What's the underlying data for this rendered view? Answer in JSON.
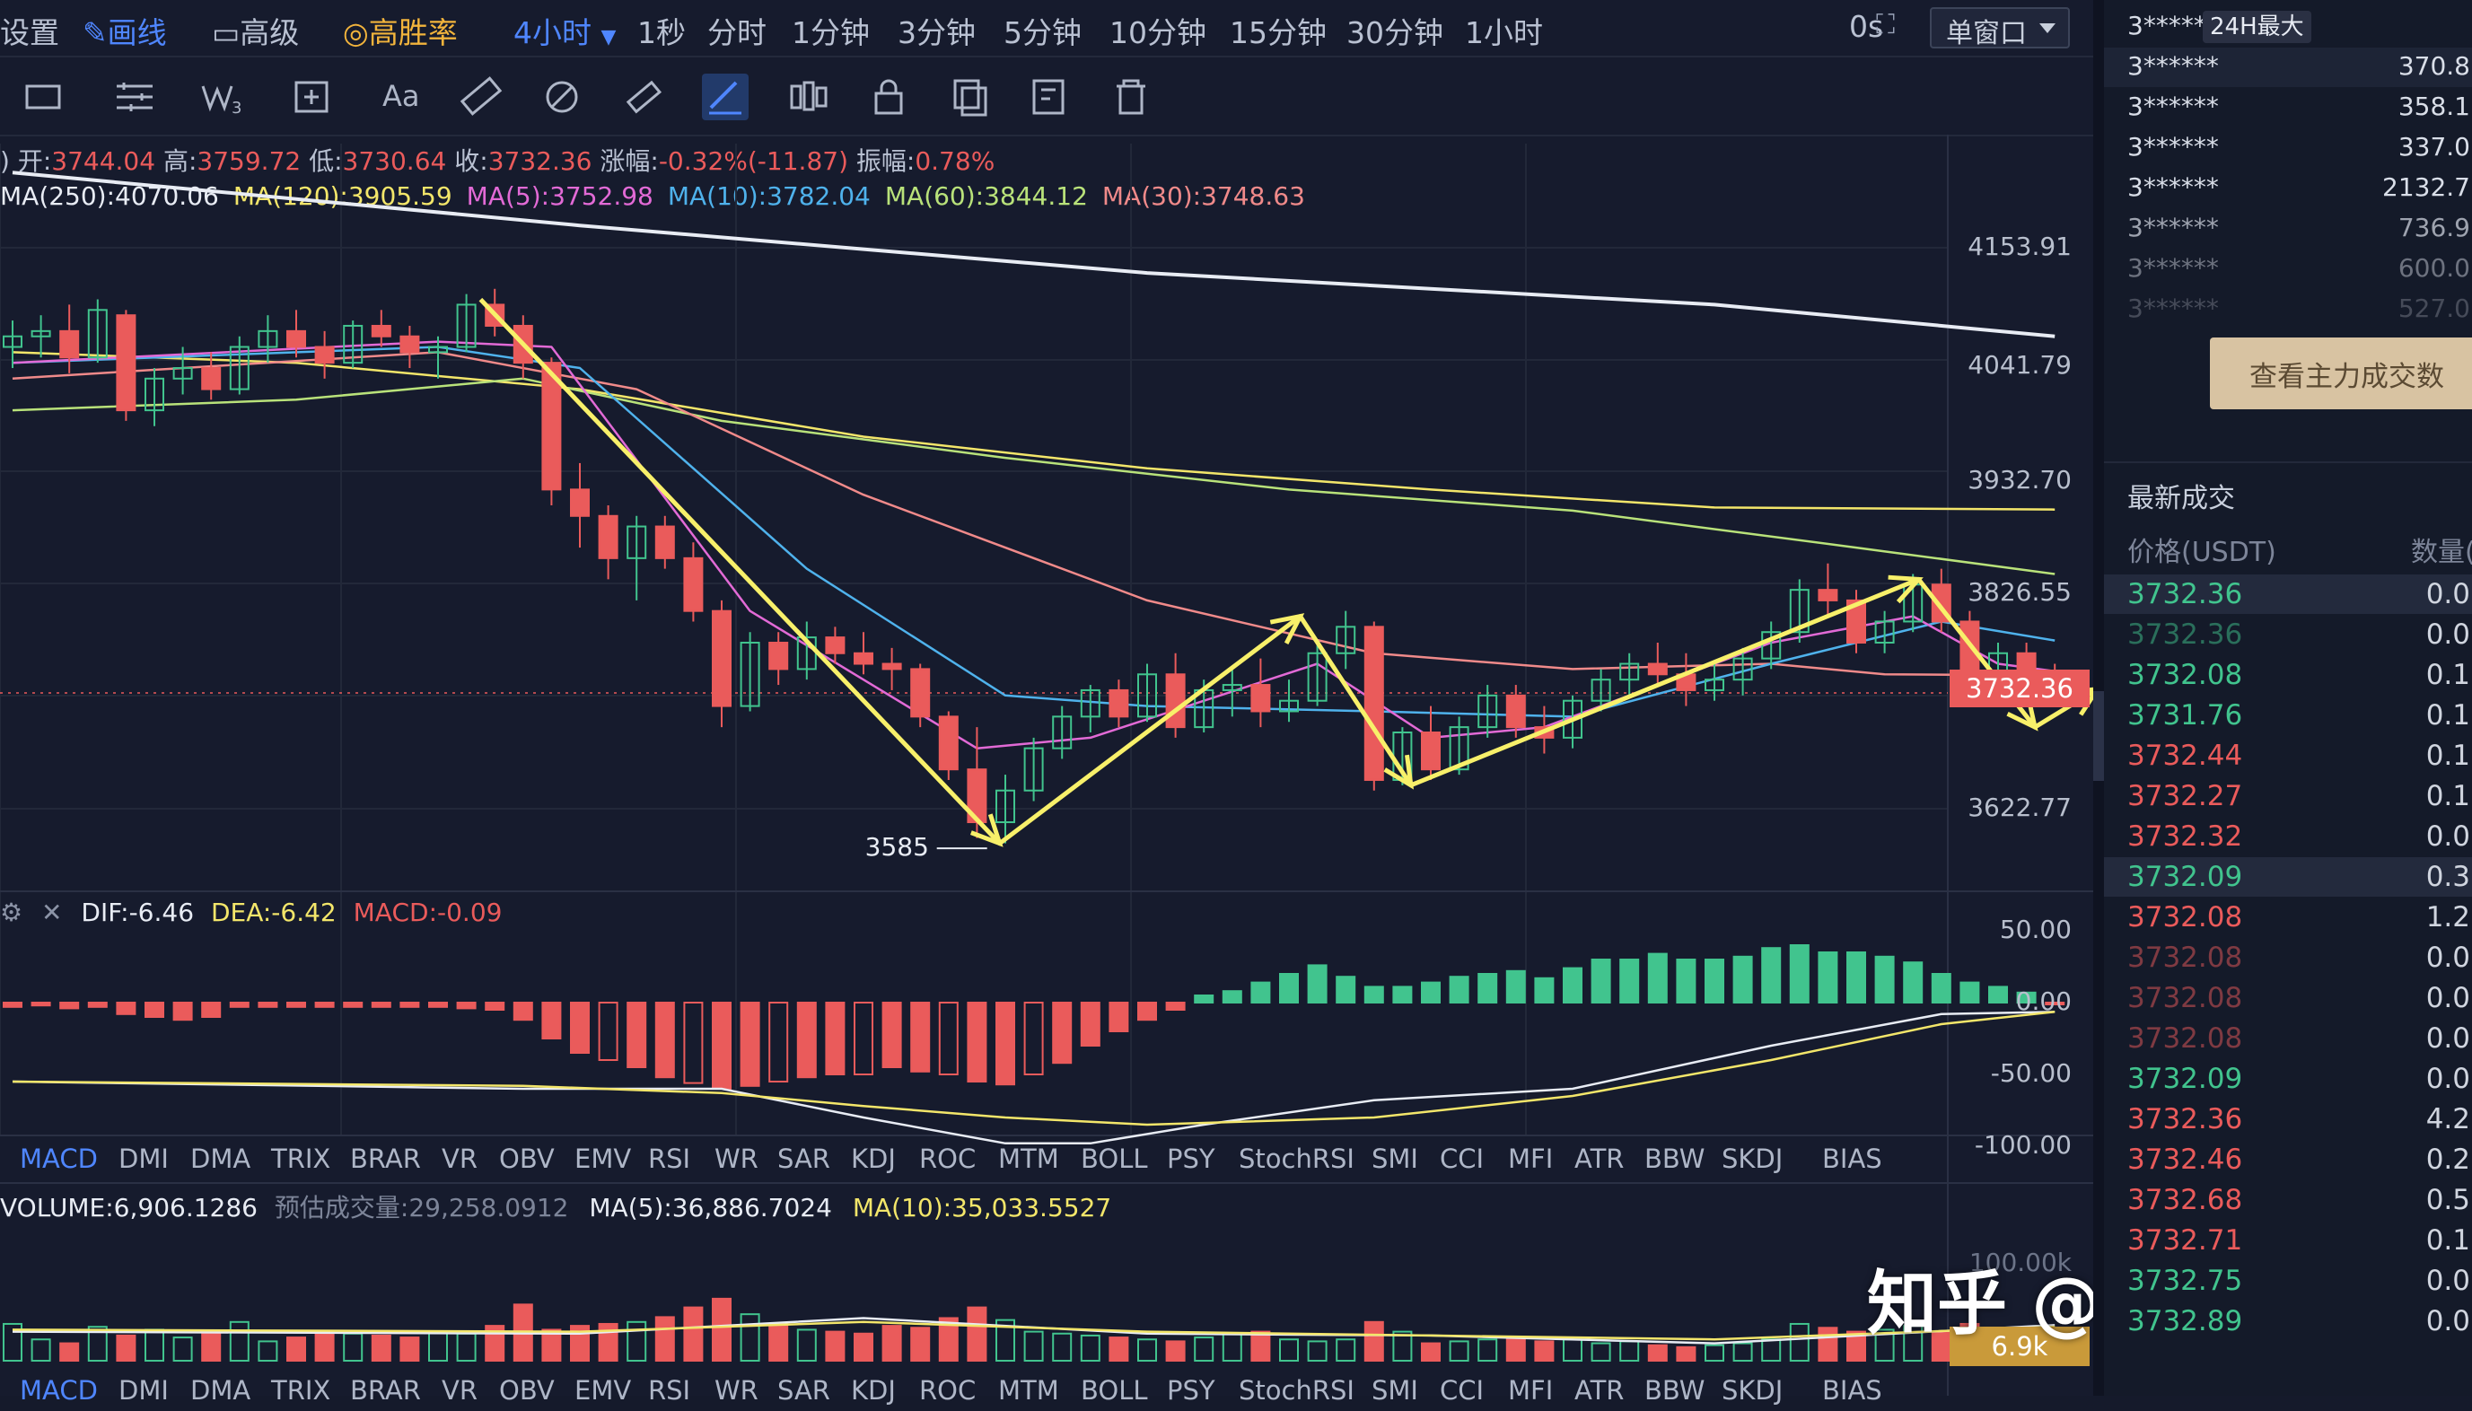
{
  "toolbar": {
    "settings": "设置",
    "draw": "画线",
    "advanced": "高级",
    "win_rate": "高胜率",
    "interval_active": "4小时",
    "intervals": [
      "1秒",
      "分时",
      "1分钟",
      "3分钟",
      "5分钟",
      "10分钟",
      "15分钟",
      "30分钟",
      "1小时"
    ],
    "latency": "0s",
    "window_mode": "单窗口"
  },
  "ohlc": {
    "open_label": "开:",
    "open": "3744.04",
    "high_label": "高:",
    "high": "3759.72",
    "low_label": "低:",
    "low": "3730.64",
    "close_label": "收:",
    "close": "3732.36",
    "change_label": "涨幅:",
    "change": "-0.32%(-11.87)",
    "amplitude_label": "振幅:",
    "amplitude": "0.78%"
  },
  "ma_legend": [
    {
      "text": "MA(250):4070.06",
      "color": "#e8ecf4"
    },
    {
      "text": "MA(120):3905.59",
      "color": "#f3e66a"
    },
    {
      "text": "MA(5):3752.98",
      "color": "#e26ad6"
    },
    {
      "text": "MA(10):3782.04",
      "color": "#4fb2ec"
    },
    {
      "text": "MA(60):3844.12",
      "color": "#b9e27a"
    },
    {
      "text": "MA(30):3748.63",
      "color": "#f08a8a"
    }
  ],
  "price_axis": [
    "4153.91",
    "4041.79",
    "3932.70",
    "3826.55",
    "3622.77"
  ],
  "current_price": "3732.36",
  "low_annotation": "3585",
  "macd": {
    "dif": "DIF:-6.46",
    "dea": "DEA:-6.42",
    "macd": "MACD:-0.09",
    "axis": [
      "50.00",
      "0.00",
      "-50.00",
      "-100.00"
    ]
  },
  "indicator_tabs": [
    "MACD",
    "DMI",
    "DMA",
    "TRIX",
    "BRAR",
    "VR",
    "OBV",
    "EMV",
    "RSI",
    "WR",
    "SAR",
    "KDJ",
    "ROC",
    "MTM",
    "BOLL",
    "PSY",
    "StochRSI",
    "SMI",
    "CCI",
    "MFI",
    "ATR",
    "BBW",
    "SKDJ",
    "BIAS"
  ],
  "indicator_tab_active": "MACD",
  "volume": {
    "volume": "VOLUME:6,906.1286",
    "estimated_label": "预估成交量:",
    "estimated": "29,258.0912",
    "ma5": "MA(5):36,886.7024",
    "ma10": "MA(10):35,033.5527",
    "axis_top": "100.00k",
    "current": "6.9k"
  },
  "watermark": "知乎 @财经船长",
  "colors": {
    "up": "#41c48e",
    "down": "#ea5b5b",
    "accent": "#4f86ff",
    "annotation": "#f8f06a"
  },
  "right_panel": {
    "top_badge": "24H最大",
    "top_holders": [
      {
        "name": "3******",
        "value": ""
      },
      {
        "name": "3******",
        "value": "370.8"
      },
      {
        "name": "3******",
        "value": "358.1"
      },
      {
        "name": "3******",
        "value": "337.0"
      },
      {
        "name": "3******",
        "value": "2132.7"
      },
      {
        "name": "3******",
        "value": "736.9"
      },
      {
        "name": "3******",
        "value": "600.0"
      },
      {
        "name": "3******",
        "value": "527.0"
      }
    ],
    "view_button": "查看主力成交数",
    "latest_trades_title": "最新成交",
    "price_header": "价格(USDT)",
    "qty_header": "数量(",
    "trades": [
      {
        "price": "3732.36",
        "qty": "0.0",
        "dir": "up"
      },
      {
        "price": "3732.36",
        "qty": "0.0",
        "dir": "up"
      },
      {
        "price": "3732.08",
        "qty": "0.1",
        "dir": "up"
      },
      {
        "price": "3731.76",
        "qty": "0.1",
        "dir": "up"
      },
      {
        "price": "3732.44",
        "qty": "0.1",
        "dir": "down"
      },
      {
        "price": "3732.27",
        "qty": "0.1",
        "dir": "down"
      },
      {
        "price": "3732.32",
        "qty": "0.0",
        "dir": "down"
      },
      {
        "price": "3732.09",
        "qty": "0.3",
        "dir": "up"
      },
      {
        "price": "3732.08",
        "qty": "1.2",
        "dir": "down"
      },
      {
        "price": "3732.08",
        "qty": "0.0",
        "dir": "down"
      },
      {
        "price": "3732.08",
        "qty": "0.0",
        "dir": "down"
      },
      {
        "price": "3732.08",
        "qty": "0.0",
        "dir": "down"
      },
      {
        "price": "3732.09",
        "qty": "0.0",
        "dir": "up"
      },
      {
        "price": "3732.36",
        "qty": "4.2",
        "dir": "down"
      },
      {
        "price": "3732.46",
        "qty": "0.2",
        "dir": "down"
      },
      {
        "price": "3732.68",
        "qty": "0.5",
        "dir": "down"
      },
      {
        "price": "3732.71",
        "qty": "0.1",
        "dir": "down"
      },
      {
        "price": "3732.75",
        "qty": "0.0",
        "dir": "up"
      },
      {
        "price": "3732.89",
        "qty": "0.0",
        "dir": "up"
      }
    ]
  },
  "chart_data": {
    "type": "candlestick",
    "interval": "4小时",
    "ylim": [
      3540,
      4230
    ],
    "candles": [
      [
        4060,
        4085,
        4040,
        4070
      ],
      [
        4070,
        4090,
        4050,
        4075
      ],
      [
        4075,
        4100,
        4035,
        4050
      ],
      [
        4050,
        4105,
        4045,
        4095
      ],
      [
        4090,
        4095,
        3990,
        4000
      ],
      [
        4000,
        4040,
        3985,
        4030
      ],
      [
        4030,
        4060,
        4015,
        4040
      ],
      [
        4040,
        4055,
        4010,
        4020
      ],
      [
        4020,
        4070,
        4015,
        4060
      ],
      [
        4060,
        4090,
        4045,
        4075
      ],
      [
        4075,
        4095,
        4050,
        4060
      ],
      [
        4060,
        4075,
        4030,
        4045
      ],
      [
        4045,
        4085,
        4040,
        4080
      ],
      [
        4080,
        4095,
        4060,
        4070
      ],
      [
        4070,
        4080,
        4040,
        4055
      ],
      [
        4055,
        4070,
        4030,
        4060
      ],
      [
        4060,
        4110,
        4055,
        4100
      ],
      [
        4100,
        4115,
        4070,
        4080
      ],
      [
        4080,
        4090,
        4030,
        4045
      ],
      [
        4045,
        4050,
        3910,
        3925
      ],
      [
        3925,
        3950,
        3870,
        3900
      ],
      [
        3900,
        3910,
        3840,
        3860
      ],
      [
        3860,
        3900,
        3820,
        3890
      ],
      [
        3890,
        3900,
        3850,
        3860
      ],
      [
        3860,
        3875,
        3800,
        3810
      ],
      [
        3810,
        3820,
        3700,
        3720
      ],
      [
        3720,
        3790,
        3715,
        3780
      ],
      [
        3780,
        3790,
        3740,
        3755
      ],
      [
        3755,
        3800,
        3745,
        3785
      ],
      [
        3785,
        3795,
        3760,
        3770
      ],
      [
        3770,
        3790,
        3750,
        3760
      ],
      [
        3760,
        3775,
        3735,
        3755
      ],
      [
        3755,
        3760,
        3700,
        3710
      ],
      [
        3710,
        3715,
        3650,
        3660
      ],
      [
        3660,
        3700,
        3595,
        3610
      ],
      [
        3610,
        3655,
        3590,
        3640
      ],
      [
        3640,
        3690,
        3630,
        3680
      ],
      [
        3680,
        3720,
        3670,
        3710
      ],
      [
        3710,
        3740,
        3695,
        3735
      ],
      [
        3735,
        3745,
        3700,
        3710
      ],
      [
        3710,
        3760,
        3705,
        3750
      ],
      [
        3750,
        3770,
        3690,
        3700
      ],
      [
        3700,
        3745,
        3695,
        3735
      ],
      [
        3735,
        3755,
        3710,
        3740
      ],
      [
        3740,
        3765,
        3700,
        3715
      ],
      [
        3715,
        3745,
        3705,
        3725
      ],
      [
        3725,
        3780,
        3720,
        3770
      ],
      [
        3770,
        3810,
        3755,
        3795
      ],
      [
        3795,
        3800,
        3640,
        3650
      ],
      [
        3650,
        3700,
        3645,
        3695
      ],
      [
        3695,
        3720,
        3650,
        3660
      ],
      [
        3660,
        3710,
        3655,
        3700
      ],
      [
        3700,
        3740,
        3690,
        3730
      ],
      [
        3730,
        3740,
        3690,
        3700
      ],
      [
        3700,
        3720,
        3675,
        3690
      ],
      [
        3690,
        3730,
        3680,
        3725
      ],
      [
        3725,
        3755,
        3715,
        3745
      ],
      [
        3745,
        3770,
        3730,
        3760
      ],
      [
        3760,
        3780,
        3740,
        3750
      ],
      [
        3750,
        3770,
        3720,
        3735
      ],
      [
        3735,
        3760,
        3725,
        3745
      ],
      [
        3745,
        3775,
        3730,
        3765
      ],
      [
        3765,
        3800,
        3755,
        3790
      ],
      [
        3790,
        3840,
        3780,
        3830
      ],
      [
        3830,
        3855,
        3805,
        3820
      ],
      [
        3820,
        3830,
        3770,
        3780
      ],
      [
        3780,
        3810,
        3770,
        3800
      ],
      [
        3800,
        3845,
        3790,
        3835
      ],
      [
        3835,
        3850,
        3790,
        3800
      ],
      [
        3800,
        3810,
        3720,
        3730
      ],
      [
        3730,
        3780,
        3720,
        3770
      ],
      [
        3770,
        3780,
        3740,
        3745
      ],
      [
        3745,
        3760,
        3730,
        3732.36
      ]
    ],
    "ma_series": [
      {
        "name": "MA(250)",
        "color": "#e8ecf4",
        "points": [
          [
            0,
            4225
          ],
          [
            20,
            4175
          ],
          [
            40,
            4130
          ],
          [
            60,
            4100
          ],
          [
            72,
            4070
          ]
        ]
      },
      {
        "name": "MA(120)",
        "color": "#f3e66a",
        "points": [
          [
            0,
            4055
          ],
          [
            10,
            4045
          ],
          [
            20,
            4020
          ],
          [
            30,
            3975
          ],
          [
            40,
            3945
          ],
          [
            50,
            3925
          ],
          [
            60,
            3908
          ],
          [
            72,
            3906
          ]
        ]
      },
      {
        "name": "MA(60)",
        "color": "#b9e27a",
        "points": [
          [
            0,
            4000
          ],
          [
            10,
            4010
          ],
          [
            18,
            4030
          ],
          [
            25,
            3990
          ],
          [
            35,
            3955
          ],
          [
            45,
            3925
          ],
          [
            55,
            3905
          ],
          [
            65,
            3870
          ],
          [
            72,
            3845
          ]
        ]
      },
      {
        "name": "MA(30)",
        "color": "#f08a8a",
        "points": [
          [
            0,
            4030
          ],
          [
            15,
            4055
          ],
          [
            22,
            4020
          ],
          [
            30,
            3920
          ],
          [
            40,
            3820
          ],
          [
            48,
            3770
          ],
          [
            55,
            3755
          ],
          [
            62,
            3760
          ],
          [
            66,
            3750
          ],
          [
            72,
            3749
          ]
        ]
      },
      {
        "name": "MA(10)",
        "color": "#4fb2ec",
        "points": [
          [
            0,
            4045
          ],
          [
            15,
            4060
          ],
          [
            20,
            4040
          ],
          [
            28,
            3850
          ],
          [
            35,
            3730
          ],
          [
            40,
            3720
          ],
          [
            48,
            3715
          ],
          [
            55,
            3710
          ],
          [
            62,
            3760
          ],
          [
            68,
            3800
          ],
          [
            72,
            3782
          ]
        ]
      },
      {
        "name": "MA(5)",
        "color": "#e26ad6",
        "points": [
          [
            0,
            4045
          ],
          [
            15,
            4065
          ],
          [
            19,
            4060
          ],
          [
            26,
            3810
          ],
          [
            34,
            3680
          ],
          [
            38,
            3690
          ],
          [
            46,
            3760
          ],
          [
            50,
            3690
          ],
          [
            54,
            3700
          ],
          [
            62,
            3780
          ],
          [
            67,
            3805
          ],
          [
            70,
            3760
          ],
          [
            72,
            3753
          ]
        ]
      }
    ],
    "annotations": {
      "pattern_points": [
        [
          16.5,
          4105
        ],
        [
          34.8,
          3590
        ],
        [
          45.4,
          3805
        ],
        [
          49.3,
          3645
        ],
        [
          67.2,
          3840
        ],
        [
          71.3,
          3700
        ],
        [
          73.5,
          3736
        ]
      ],
      "arrow_to": [
        82,
        3895
      ],
      "low_label": "3585",
      "low_label_at": [
        34.8,
        3587
      ]
    },
    "macd": {
      "ylim": [
        -100,
        65
      ],
      "dif": [
        [
          0,
          -55
        ],
        [
          18,
          -60
        ],
        [
          25,
          -60
        ],
        [
          30,
          -80
        ],
        [
          35,
          -98
        ],
        [
          38,
          -98
        ],
        [
          42,
          -85
        ],
        [
          48,
          -68
        ],
        [
          55,
          -60
        ],
        [
          62,
          -30
        ],
        [
          68,
          -8
        ],
        [
          72,
          -6.46
        ]
      ],
      "dea": [
        [
          0,
          -55
        ],
        [
          18,
          -58
        ],
        [
          25,
          -63
        ],
        [
          30,
          -72
        ],
        [
          35,
          -80
        ],
        [
          40,
          -85
        ],
        [
          48,
          -80
        ],
        [
          55,
          -65
        ],
        [
          62,
          -40
        ],
        [
          68,
          -15
        ],
        [
          72,
          -6.42
        ]
      ],
      "hist": [
        -3,
        -2,
        -4,
        -3,
        -8,
        -10,
        -12,
        -10,
        -3,
        -3,
        -3,
        -3,
        -3,
        -3,
        -3,
        -3,
        -4,
        -5,
        -12,
        -25,
        -35,
        -40,
        -45,
        -52,
        -56,
        -60,
        -58,
        -55,
        -52,
        -50,
        -50,
        -45,
        -48,
        -50,
        -55,
        -57,
        -50,
        -42,
        -30,
        -20,
        -12,
        -5,
        5,
        8,
        14,
        20,
        26,
        18,
        11,
        11,
        14,
        18,
        20,
        22,
        17,
        24,
        30,
        30,
        34,
        30,
        30,
        32,
        38,
        40,
        35,
        35,
        32,
        28,
        20,
        14,
        11,
        7,
        -0.09
      ],
      "ylabel_ticks": [
        "50.00",
        "0.00",
        "-50.00",
        "-100.00"
      ]
    },
    "volume": {
      "ylim": [
        0,
        100000
      ],
      "bars": [
        38000,
        22000,
        18000,
        35000,
        26000,
        32000,
        24000,
        30000,
        40000,
        20000,
        24000,
        30000,
        28000,
        26000,
        24000,
        30000,
        28000,
        36000,
        58000,
        32000,
        36000,
        38000,
        40000,
        45000,
        55000,
        64000,
        48000,
        38000,
        32000,
        30000,
        28000,
        36000,
        34000,
        44000,
        55000,
        42000,
        30000,
        28000,
        26000,
        24000,
        22000,
        20000,
        24000,
        28000,
        30000,
        22000,
        20000,
        22000,
        40000,
        30000,
        18000,
        20000,
        22000,
        24000,
        20000,
        22000,
        18000,
        20000,
        16000,
        14000,
        16000,
        18000,
        22000,
        38000,
        34000,
        30000,
        32000,
        36000,
        30000,
        38000,
        28000,
        24000,
        6906
      ],
      "ma5": [
        [
          0,
          30000
        ],
        [
          20,
          28000
        ],
        [
          30,
          44000
        ],
        [
          40,
          28000
        ],
        [
          50,
          26000
        ],
        [
          60,
          18000
        ],
        [
          72,
          36886
        ]
      ],
      "ma10": [
        [
          0,
          32000
        ],
        [
          20,
          30000
        ],
        [
          30,
          40000
        ],
        [
          40,
          30000
        ],
        [
          50,
          26000
        ],
        [
          60,
          22000
        ],
        [
          72,
          35033
        ]
      ]
    }
  }
}
